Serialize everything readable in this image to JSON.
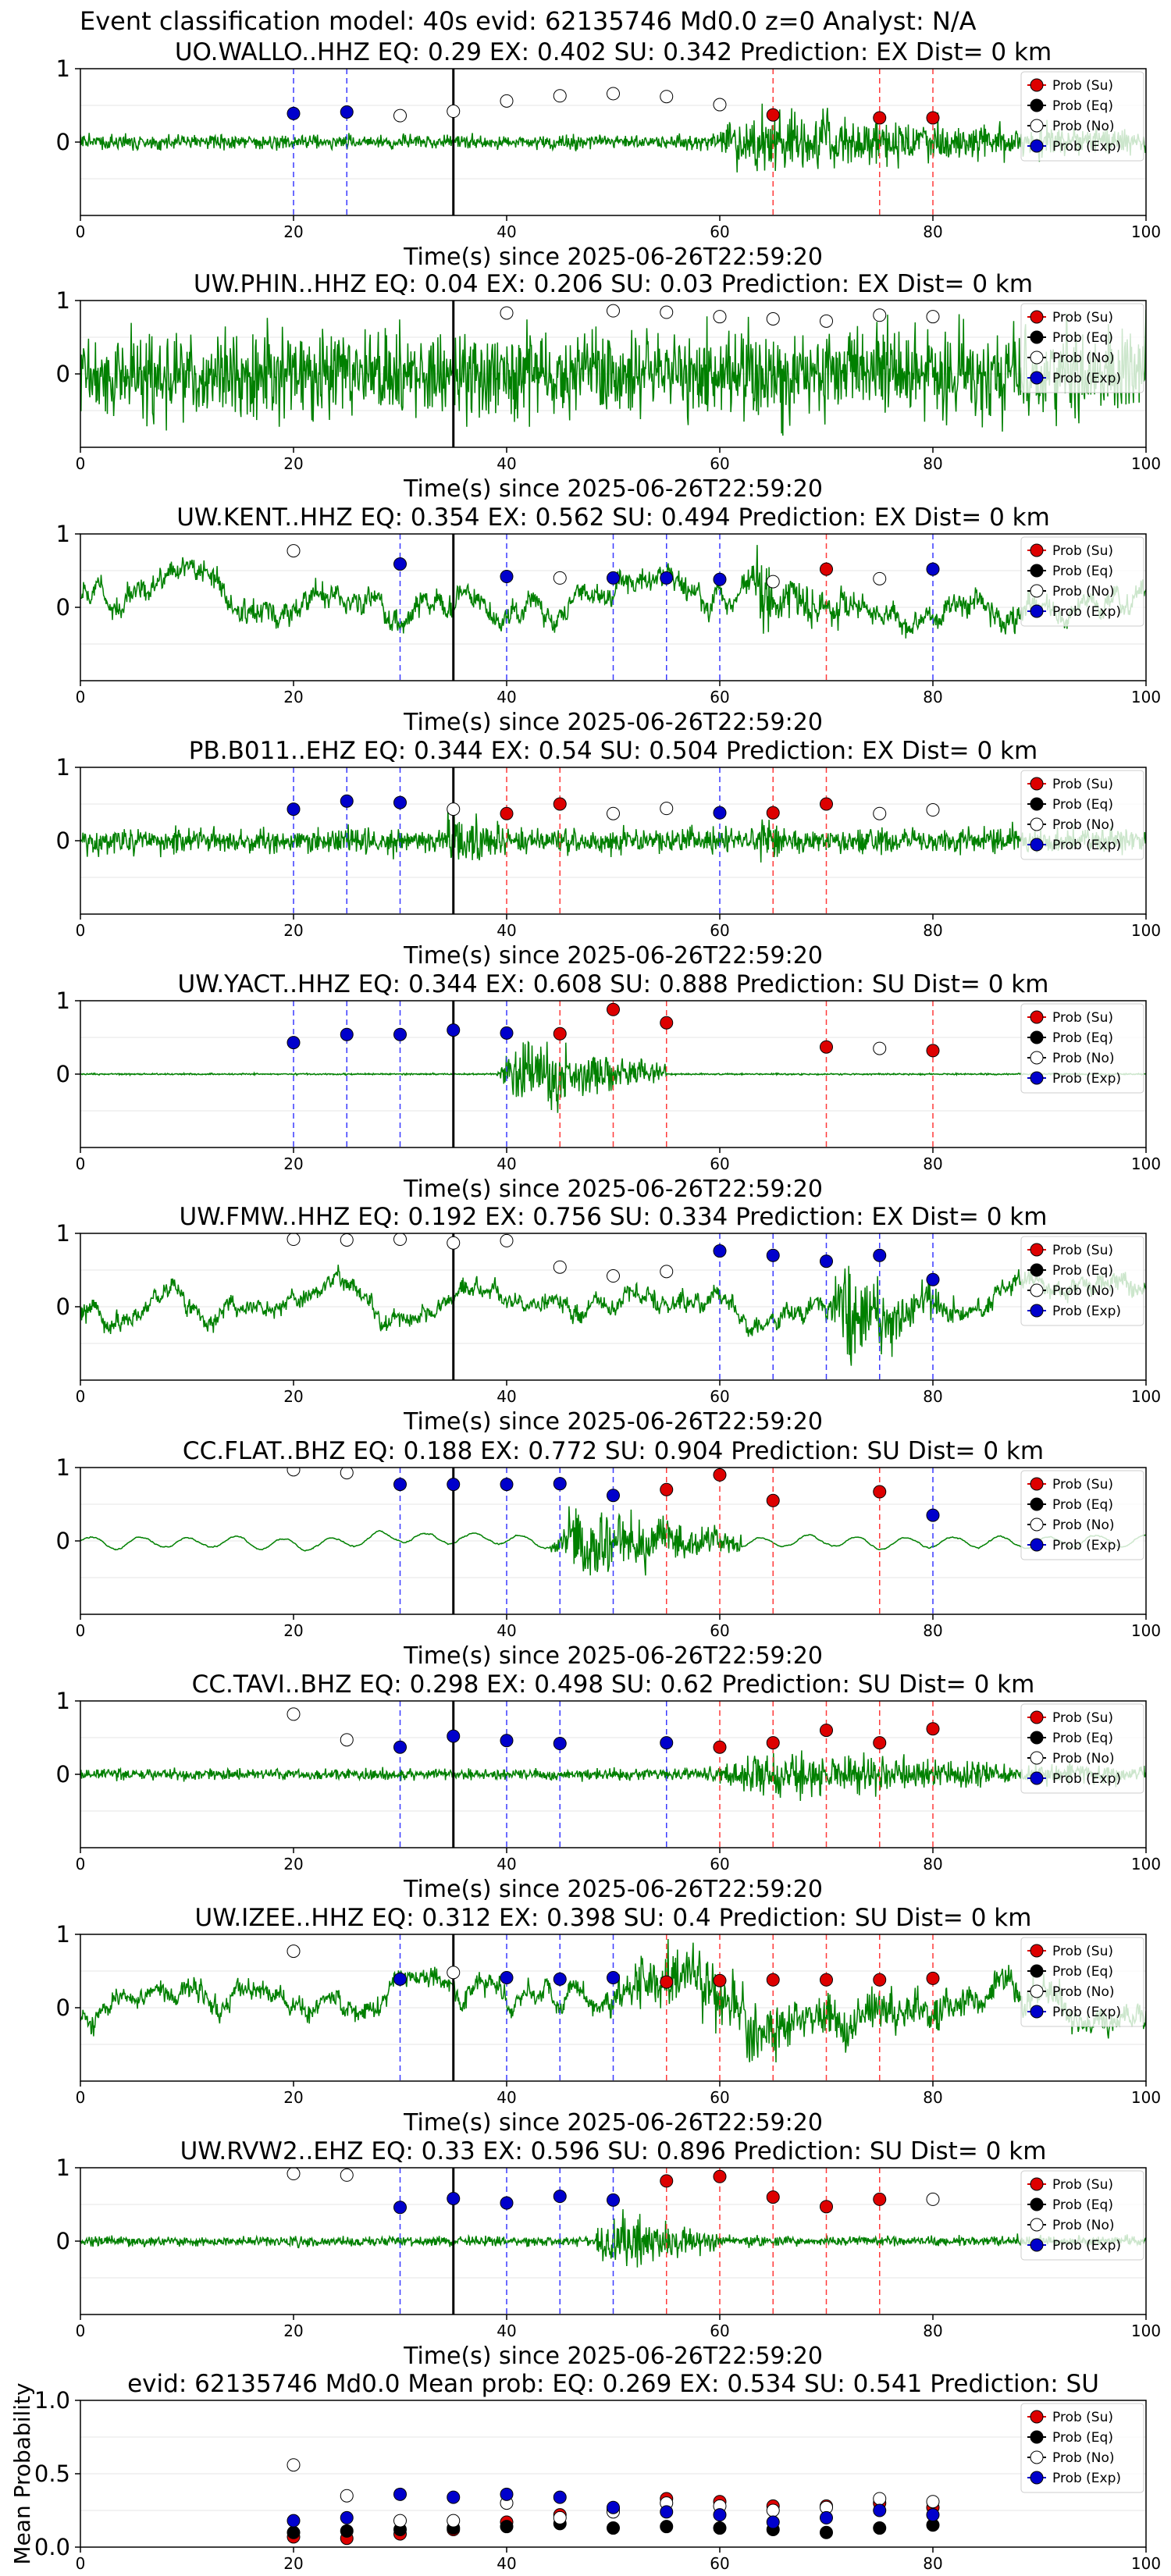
{
  "suptitle": "Event classification model: 40s evid: 62135746 Md0.0 z=0 Analyst: N/A",
  "legend": [
    "Prob (Su)",
    "Prob (Eq)",
    "Prob (No)",
    "Prob (Exp)"
  ],
  "colors": {
    "su": "#dd0000",
    "eq": "#000000",
    "no": "#ffffff",
    "exp": "#0000cc",
    "wave": "#008000"
  },
  "chart_data": [
    {
      "type": "line",
      "title": "UO.WALLO..HHZ   EQ: 0.29  EX: 0.402  SU: 0.342   Prediction: EX    Dist= 0 km",
      "xlabel": "Time(s) since 2025-06-26T22:59:20",
      "xlim": [
        0,
        100
      ],
      "ylim": [
        -1,
        1
      ],
      "xticks": [
        "0",
        "20",
        "40",
        "60",
        "80",
        "100"
      ],
      "yticks": [
        "0",
        "1"
      ],
      "waveform": {
        "style": "bursty",
        "amp": 0.1,
        "seed": 1,
        "events": [
          {
            "t0": 58,
            "t1": 100,
            "amp": 0.75
          }
        ]
      },
      "pick_time": 35,
      "blue_lines": [
        20,
        25
      ],
      "red_lines": [
        65,
        75,
        80
      ],
      "points": {
        "su": [
          [
            65,
            0.37
          ],
          [
            75,
            0.33
          ],
          [
            80,
            0.33
          ]
        ],
        "no": [
          [
            30,
            0.36
          ],
          [
            35,
            0.42
          ],
          [
            40,
            0.56
          ],
          [
            45,
            0.63
          ],
          [
            50,
            0.66
          ],
          [
            55,
            0.62
          ],
          [
            60,
            0.51
          ]
        ],
        "exp": [
          [
            20,
            0.39
          ],
          [
            25,
            0.41
          ]
        ]
      }
    },
    {
      "type": "line",
      "title": "UW.PHIN..HHZ   EQ: 0.04  EX: 0.206  SU: 0.03   Prediction: EX    Dist= 0 km",
      "xlabel": "Time(s) since 2025-06-26T22:59:20",
      "xlim": [
        0,
        100
      ],
      "ylim": [
        -1,
        1
      ],
      "xticks": [
        "0",
        "20",
        "40",
        "60",
        "80",
        "100"
      ],
      "yticks": [
        "0",
        "1"
      ],
      "waveform": {
        "style": "noise",
        "amp": 0.7,
        "seed": 2,
        "events": []
      },
      "pick_time": 35,
      "blue_lines": [],
      "red_lines": [],
      "points": {
        "su": [],
        "no": [
          [
            40,
            0.83
          ],
          [
            50,
            0.86
          ],
          [
            55,
            0.84
          ],
          [
            60,
            0.78
          ],
          [
            65,
            0.75
          ],
          [
            70,
            0.72
          ],
          [
            75,
            0.8
          ],
          [
            80,
            0.78
          ]
        ],
        "exp": []
      }
    },
    {
      "type": "line",
      "title": "UW.KENT..HHZ   EQ: 0.354  EX: 0.562  SU: 0.494   Prediction: EX    Dist= 0 km",
      "xlabel": "Time(s) since 2025-06-26T22:59:20",
      "xlim": [
        0,
        100
      ],
      "ylim": [
        -1,
        1
      ],
      "xticks": [
        "0",
        "20",
        "40",
        "60",
        "80",
        "100"
      ],
      "yticks": [
        "0",
        "1"
      ],
      "waveform": {
        "style": "wavy",
        "amp": 0.5,
        "seed": 3,
        "events": [
          {
            "t0": 62,
            "t1": 72,
            "amp": 0.7
          }
        ]
      },
      "pick_time": 35,
      "blue_lines": [
        30,
        40,
        50,
        55,
        60,
        80
      ],
      "red_lines": [
        70
      ],
      "points": {
        "su": [
          [
            70,
            0.52
          ]
        ],
        "no": [
          [
            20,
            0.77
          ],
          [
            45,
            0.4
          ],
          [
            65,
            0.35
          ],
          [
            75,
            0.39
          ]
        ],
        "exp": [
          [
            30,
            0.59
          ],
          [
            40,
            0.42
          ],
          [
            50,
            0.4
          ],
          [
            55,
            0.4
          ],
          [
            60,
            0.38
          ],
          [
            80,
            0.52
          ]
        ]
      }
    },
    {
      "type": "line",
      "title": "PB.B011..EHZ   EQ: 0.344  EX: 0.54  SU: 0.504   Prediction: EX    Dist= 0 km",
      "xlabel": "Time(s) since 2025-06-26T22:59:20",
      "xlim": [
        0,
        100
      ],
      "ylim": [
        -1,
        1
      ],
      "xticks": [
        "0",
        "20",
        "40",
        "60",
        "80",
        "100"
      ],
      "yticks": [
        "0",
        "1"
      ],
      "waveform": {
        "style": "bursty",
        "amp": 0.18,
        "seed": 4,
        "events": [
          {
            "t0": 34,
            "t1": 40,
            "amp": 0.95
          },
          {
            "t0": 63,
            "t1": 68,
            "amp": 0.45
          }
        ]
      },
      "pick_time": 35,
      "blue_lines": [
        20,
        25,
        30,
        60
      ],
      "red_lines": [
        40,
        45,
        65,
        70
      ],
      "points": {
        "su": [
          [
            40,
            0.37
          ],
          [
            45,
            0.5
          ],
          [
            65,
            0.38
          ],
          [
            70,
            0.5
          ]
        ],
        "no": [
          [
            35,
            0.43
          ],
          [
            50,
            0.37
          ],
          [
            55,
            0.44
          ],
          [
            75,
            0.37
          ],
          [
            80,
            0.42
          ]
        ],
        "exp": [
          [
            20,
            0.43
          ],
          [
            25,
            0.54
          ],
          [
            30,
            0.52
          ],
          [
            60,
            0.38
          ]
        ]
      }
    },
    {
      "type": "line",
      "title": "UW.YACT..HHZ   EQ: 0.344  EX: 0.608  SU: 0.888   Prediction: SU    Dist= 0 km",
      "xlabel": "Time(s) since 2025-06-26T22:59:20",
      "xlim": [
        0,
        100
      ],
      "ylim": [
        -1,
        1
      ],
      "xticks": [
        "0",
        "20",
        "40",
        "60",
        "80",
        "100"
      ],
      "yticks": [
        "0",
        "1"
      ],
      "waveform": {
        "style": "quiet",
        "amp": 0.01,
        "seed": 5,
        "events": [
          {
            "t0": 39,
            "t1": 55,
            "amp": 0.85
          }
        ]
      },
      "pick_time": 35,
      "blue_lines": [
        20,
        25,
        30,
        35,
        40
      ],
      "red_lines": [
        45,
        50,
        55,
        70,
        80
      ],
      "points": {
        "su": [
          [
            45,
            0.55
          ],
          [
            50,
            0.88
          ],
          [
            55,
            0.7
          ],
          [
            70,
            0.37
          ],
          [
            80,
            0.32
          ]
        ],
        "no": [
          [
            75,
            0.35
          ]
        ],
        "exp": [
          [
            20,
            0.43
          ],
          [
            25,
            0.54
          ],
          [
            30,
            0.54
          ],
          [
            35,
            0.6
          ],
          [
            40,
            0.56
          ]
        ]
      }
    },
    {
      "type": "line",
      "title": "UW.FMW..HHZ   EQ: 0.192  EX: 0.756  SU: 0.334   Prediction: EX    Dist= 0 km",
      "xlabel": "Time(s) since 2025-06-26T22:59:20",
      "xlim": [
        0,
        100
      ],
      "ylim": [
        -1,
        1
      ],
      "xticks": [
        "0",
        "20",
        "40",
        "60",
        "80",
        "100"
      ],
      "yticks": [
        "0",
        "1"
      ],
      "waveform": {
        "style": "wavy",
        "amp": 0.4,
        "seed": 6,
        "events": [
          {
            "t0": 70,
            "t1": 82,
            "amp": 0.9
          }
        ]
      },
      "pick_time": 35,
      "blue_lines": [
        60,
        65,
        70,
        75,
        80
      ],
      "red_lines": [],
      "points": {
        "su": [],
        "no": [
          [
            20,
            0.92
          ],
          [
            25,
            0.91
          ],
          [
            30,
            0.92
          ],
          [
            35,
            0.87
          ],
          [
            40,
            0.9
          ],
          [
            45,
            0.54
          ],
          [
            50,
            0.42
          ],
          [
            55,
            0.48
          ]
        ],
        "exp": [
          [
            60,
            0.76
          ],
          [
            65,
            0.7
          ],
          [
            70,
            0.62
          ],
          [
            75,
            0.7
          ],
          [
            80,
            0.37
          ]
        ]
      }
    },
    {
      "type": "line",
      "title": "CC.FLAT..BHZ   EQ: 0.188  EX: 0.772  SU: 0.904   Prediction: SU    Dist= 0 km",
      "xlabel": "Time(s) since 2025-06-26T22:59:20",
      "xlim": [
        0,
        100
      ],
      "ylim": [
        -1,
        1
      ],
      "xticks": [
        "0",
        "20",
        "40",
        "60",
        "80",
        "100"
      ],
      "yticks": [
        "0",
        "1"
      ],
      "waveform": {
        "style": "smooth",
        "amp": 0.12,
        "seed": 7,
        "events": [
          {
            "t0": 44,
            "t1": 62,
            "amp": 0.9
          }
        ]
      },
      "pick_time": 35,
      "blue_lines": [
        30,
        35,
        40,
        45,
        50,
        80
      ],
      "red_lines": [
        55,
        60,
        65,
        75
      ],
      "points": {
        "su": [
          [
            55,
            0.7
          ],
          [
            60,
            0.9
          ],
          [
            65,
            0.55
          ],
          [
            75,
            0.67
          ]
        ],
        "no": [
          [
            20,
            0.97
          ],
          [
            25,
            0.93
          ]
        ],
        "exp": [
          [
            30,
            0.77
          ],
          [
            35,
            0.77
          ],
          [
            40,
            0.77
          ],
          [
            45,
            0.78
          ],
          [
            50,
            0.62
          ],
          [
            80,
            0.35
          ]
        ]
      }
    },
    {
      "type": "line",
      "title": "CC.TAVI..BHZ   EQ: 0.298  EX: 0.498  SU: 0.62   Prediction: SU    Dist= 0 km",
      "xlabel": "Time(s) since 2025-06-26T22:59:20",
      "xlim": [
        0,
        100
      ],
      "ylim": [
        -1,
        1
      ],
      "xticks": [
        "0",
        "20",
        "40",
        "60",
        "80",
        "100"
      ],
      "yticks": [
        "0",
        "1"
      ],
      "waveform": {
        "style": "bursty",
        "amp": 0.08,
        "seed": 8,
        "events": [
          {
            "t0": 58,
            "t1": 100,
            "amp": 0.55
          }
        ]
      },
      "pick_time": 35,
      "blue_lines": [
        30,
        40,
        45,
        55
      ],
      "red_lines": [
        60,
        65,
        70,
        75,
        80
      ],
      "points": {
        "su": [
          [
            60,
            0.37
          ],
          [
            65,
            0.43
          ],
          [
            70,
            0.6
          ],
          [
            75,
            0.43
          ],
          [
            80,
            0.62
          ]
        ],
        "no": [
          [
            20,
            0.82
          ],
          [
            25,
            0.47
          ]
        ],
        "exp": [
          [
            30,
            0.37
          ],
          [
            35,
            0.52
          ],
          [
            40,
            0.46
          ],
          [
            45,
            0.42
          ],
          [
            55,
            0.43
          ]
        ]
      }
    },
    {
      "type": "line",
      "title": "UW.IZEE..HHZ   EQ: 0.312  EX: 0.398  SU: 0.4   Prediction: SU    Dist= 0 km",
      "xlabel": "Time(s) since 2025-06-26T22:59:20",
      "xlim": [
        0,
        100
      ],
      "ylim": [
        -1,
        1
      ],
      "xticks": [
        "0",
        "20",
        "40",
        "60",
        "80",
        "100"
      ],
      "yticks": [
        "0",
        "1"
      ],
      "waveform": {
        "style": "wavy",
        "amp": 0.45,
        "seed": 9,
        "events": [
          {
            "t0": 48,
            "t1": 100,
            "amp": 0.65
          }
        ]
      },
      "pick_time": 35,
      "blue_lines": [
        30,
        40,
        45,
        50
      ],
      "red_lines": [
        55,
        60,
        65,
        70,
        75,
        80
      ],
      "points": {
        "su": [
          [
            55,
            0.35
          ],
          [
            60,
            0.37
          ],
          [
            65,
            0.38
          ],
          [
            70,
            0.38
          ],
          [
            75,
            0.38
          ],
          [
            80,
            0.4
          ]
        ],
        "no": [
          [
            20,
            0.77
          ],
          [
            35,
            0.48
          ]
        ],
        "exp": [
          [
            30,
            0.39
          ],
          [
            40,
            0.41
          ],
          [
            45,
            0.39
          ],
          [
            50,
            0.41
          ]
        ]
      }
    },
    {
      "type": "line",
      "title": "UW.RVW2..EHZ   EQ: 0.33  EX: 0.596  SU: 0.896   Prediction: SU    Dist= 0 km",
      "xlabel": "Time(s) since 2025-06-26T22:59:20",
      "xlim": [
        0,
        100
      ],
      "ylim": [
        -1,
        1
      ],
      "xticks": [
        "0",
        "20",
        "40",
        "60",
        "80",
        "100"
      ],
      "yticks": [
        "0",
        "1"
      ],
      "waveform": {
        "style": "bursty",
        "amp": 0.07,
        "seed": 10,
        "events": [
          {
            "t0": 48,
            "t1": 60,
            "amp": 0.8
          }
        ]
      },
      "pick_time": 35,
      "blue_lines": [
        30,
        40,
        45,
        50
      ],
      "red_lines": [
        35,
        55,
        60,
        65,
        70,
        75
      ],
      "points": {
        "su": [
          [
            55,
            0.82
          ],
          [
            60,
            0.88
          ],
          [
            65,
            0.6
          ],
          [
            70,
            0.47
          ],
          [
            75,
            0.57
          ]
        ],
        "no": [
          [
            20,
            0.92
          ],
          [
            25,
            0.9
          ],
          [
            80,
            0.57
          ]
        ],
        "exp": [
          [
            30,
            0.46
          ],
          [
            35,
            0.58
          ],
          [
            40,
            0.52
          ],
          [
            45,
            0.61
          ],
          [
            50,
            0.56
          ]
        ]
      }
    },
    {
      "type": "scatter",
      "title": "evid: 62135746  Md0.0   Mean prob:   EQ: 0.269  EX: 0.534  SU: 0.541   Prediction: SU",
      "xlabel": "",
      "ylabel": "Mean Probability",
      "xlim": [
        0,
        100
      ],
      "ylim": [
        0,
        1
      ],
      "xticks": [
        "0",
        "20",
        "40",
        "60",
        "80",
        "100"
      ],
      "yticks": [
        "0.0",
        "0.5",
        "1.0"
      ],
      "points": {
        "su": [
          [
            20,
            0.07
          ],
          [
            25,
            0.06
          ],
          [
            30,
            0.09
          ],
          [
            35,
            0.12
          ],
          [
            40,
            0.17
          ],
          [
            45,
            0.22
          ],
          [
            50,
            0.26
          ],
          [
            55,
            0.33
          ],
          [
            60,
            0.31
          ],
          [
            65,
            0.28
          ],
          [
            70,
            0.28
          ],
          [
            75,
            0.3
          ],
          [
            80,
            0.27
          ]
        ],
        "eq": [
          [
            20,
            0.1
          ],
          [
            25,
            0.11
          ],
          [
            30,
            0.12
          ],
          [
            35,
            0.13
          ],
          [
            40,
            0.14
          ],
          [
            45,
            0.16
          ],
          [
            50,
            0.13
          ],
          [
            55,
            0.14
          ],
          [
            60,
            0.13
          ],
          [
            65,
            0.12
          ],
          [
            70,
            0.1
          ],
          [
            75,
            0.13
          ],
          [
            80,
            0.15
          ]
        ],
        "no": [
          [
            20,
            0.56
          ],
          [
            25,
            0.35
          ],
          [
            30,
            0.18
          ],
          [
            35,
            0.18
          ],
          [
            40,
            0.3
          ],
          [
            45,
            0.2
          ],
          [
            50,
            0.24
          ],
          [
            55,
            0.3
          ],
          [
            60,
            0.28
          ],
          [
            65,
            0.25
          ],
          [
            70,
            0.27
          ],
          [
            75,
            0.33
          ],
          [
            80,
            0.31
          ]
        ],
        "exp": [
          [
            20,
            0.18
          ],
          [
            25,
            0.2
          ],
          [
            30,
            0.36
          ],
          [
            35,
            0.34
          ],
          [
            40,
            0.36
          ],
          [
            45,
            0.34
          ],
          [
            50,
            0.27
          ],
          [
            55,
            0.24
          ],
          [
            60,
            0.22
          ],
          [
            65,
            0.17
          ],
          [
            70,
            0.2
          ],
          [
            75,
            0.25
          ],
          [
            80,
            0.22
          ]
        ]
      }
    }
  ]
}
